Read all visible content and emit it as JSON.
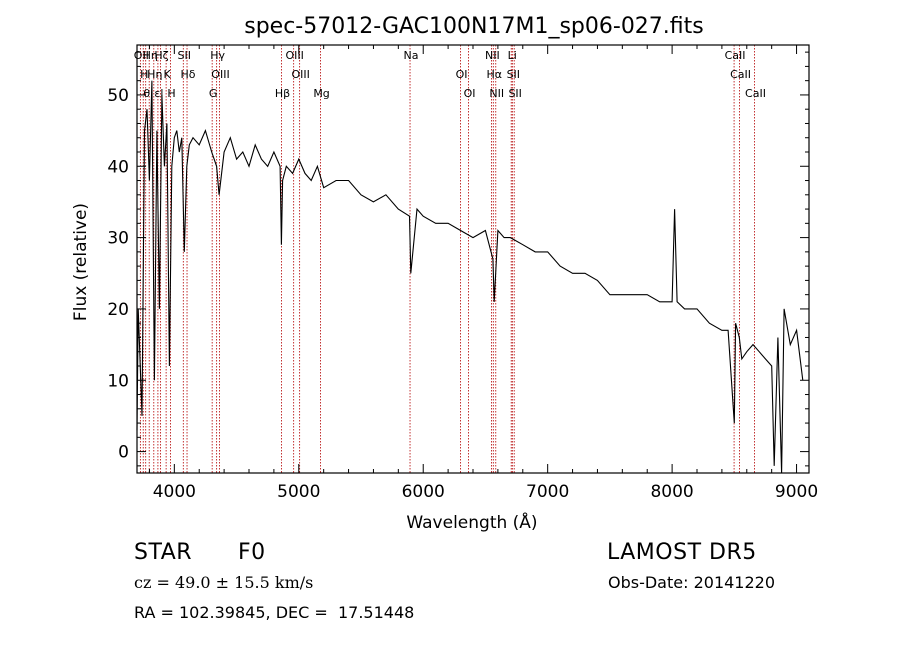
{
  "chart_data": {
    "type": "line",
    "title": "spec-57012-GAC100N17M1_sp06-027.fits",
    "xlabel": "Wavelength (Å)",
    "ylabel": "Flux (relative)",
    "xlim": [
      3700,
      9100
    ],
    "ylim": [
      -3,
      57
    ],
    "xticks": [
      4000,
      5000,
      6000,
      7000,
      8000,
      9000
    ],
    "yticks": [
      0,
      10,
      20,
      30,
      40,
      50
    ],
    "grid": false,
    "series": [
      {
        "x": [
          3700,
          3710,
          3720,
          3740,
          3760,
          3780,
          3800,
          3820,
          3840,
          3860,
          3880,
          3900,
          3920,
          3940,
          3960,
          3980,
          4000,
          4020,
          4040,
          4060,
          4080,
          4100,
          4120,
          4150,
          4200,
          4250,
          4300,
          4340,
          4360,
          4400,
          4450,
          4500,
          4550,
          4600,
          4650,
          4700,
          4750,
          4800,
          4850,
          4860,
          4870,
          4900,
          4950,
          5000,
          5050,
          5100,
          5150,
          5200,
          5300,
          5400,
          5500,
          5600,
          5700,
          5800,
          5890,
          5900,
          5950,
          6000,
          6100,
          6200,
          6300,
          6400,
          6500,
          6560,
          6570,
          6600,
          6650,
          6700,
          6800,
          6900,
          7000,
          7100,
          7200,
          7300,
          7400,
          7500,
          7600,
          7700,
          7800,
          7900,
          8000,
          8020,
          8040,
          8100,
          8200,
          8300,
          8400,
          8450,
          8500,
          8510,
          8540,
          8560,
          8600,
          8650,
          8700,
          8750,
          8800,
          8820,
          8850,
          8880,
          8900,
          8950,
          9000,
          9050
        ],
        "y": [
          3,
          20,
          15,
          5,
          45,
          48,
          38,
          52,
          10,
          45,
          20,
          50,
          40,
          46,
          12,
          40,
          44,
          45,
          42,
          44,
          28,
          40,
          43,
          44,
          43,
          45,
          42,
          40,
          36,
          42,
          44,
          41,
          42,
          40,
          43,
          41,
          40,
          42,
          40,
          29,
          38,
          40,
          39,
          41,
          39,
          38,
          40,
          37,
          38,
          38,
          36,
          35,
          36,
          34,
          33,
          25,
          34,
          33,
          32,
          32,
          31,
          30,
          31,
          27,
          21,
          31,
          30,
          30,
          29,
          28,
          28,
          26,
          25,
          25,
          24,
          22,
          22,
          22,
          22,
          21,
          21,
          34,
          21,
          20,
          20,
          18,
          17,
          17,
          4,
          18,
          16,
          13,
          14,
          15,
          14,
          13,
          12,
          -2,
          16,
          -3,
          20,
          15,
          17,
          10
        ]
      }
    ],
    "lines": [
      {
        "x": 3727,
        "label": "OII"
      },
      {
        "x": 3750,
        "label": "H"
      },
      {
        "x": 3770,
        "label": "θ"
      },
      {
        "x": 3798,
        "label": "Hη"
      },
      {
        "x": 3835,
        "label": "Hη"
      },
      {
        "x": 3868,
        "label": "εl"
      },
      {
        "x": 3889,
        "label": "Hζ"
      },
      {
        "x": 3934,
        "label": "K"
      },
      {
        "x": 3969,
        "label": "H"
      },
      {
        "x": 4072,
        "label": "SII"
      },
      {
        "x": 4102,
        "label": "Hδ"
      },
      {
        "x": 4304,
        "label": "G"
      },
      {
        "x": 4340,
        "label": "Hγ"
      },
      {
        "x": 4363,
        "label": "OIII"
      },
      {
        "x": 4861,
        "label": "Hβ"
      },
      {
        "x": 4959,
        "label": "OIII"
      },
      {
        "x": 5007,
        "label": "OIII"
      },
      {
        "x": 5175,
        "label": "Mg"
      },
      {
        "x": 5894,
        "label": "Na"
      },
      {
        "x": 6300,
        "label": "OI"
      },
      {
        "x": 6364,
        "label": "OI"
      },
      {
        "x": 6548,
        "label": "NII"
      },
      {
        "x": 6563,
        "label": "Hα"
      },
      {
        "x": 6583,
        "label": "NII"
      },
      {
        "x": 6707,
        "label": "Li"
      },
      {
        "x": 6716,
        "label": "SII"
      },
      {
        "x": 6731,
        "label": "SII"
      },
      {
        "x": 8498,
        "label": "CaII"
      },
      {
        "x": 8542,
        "label": "CaII"
      },
      {
        "x": 8662,
        "label": "CaII"
      }
    ]
  },
  "info": {
    "object_class": "STAR",
    "subclass": "F0",
    "survey": "LAMOST DR5",
    "cz": "cz = 49.0 ± 15.5 km/s",
    "obs_date": "Obs-Date: 20141220",
    "coords": "RA = 102.39845, DEC =  17.51448"
  },
  "colors": {
    "line": "#b30000",
    "spectrum": "#000000",
    "axis": "#000000"
  }
}
